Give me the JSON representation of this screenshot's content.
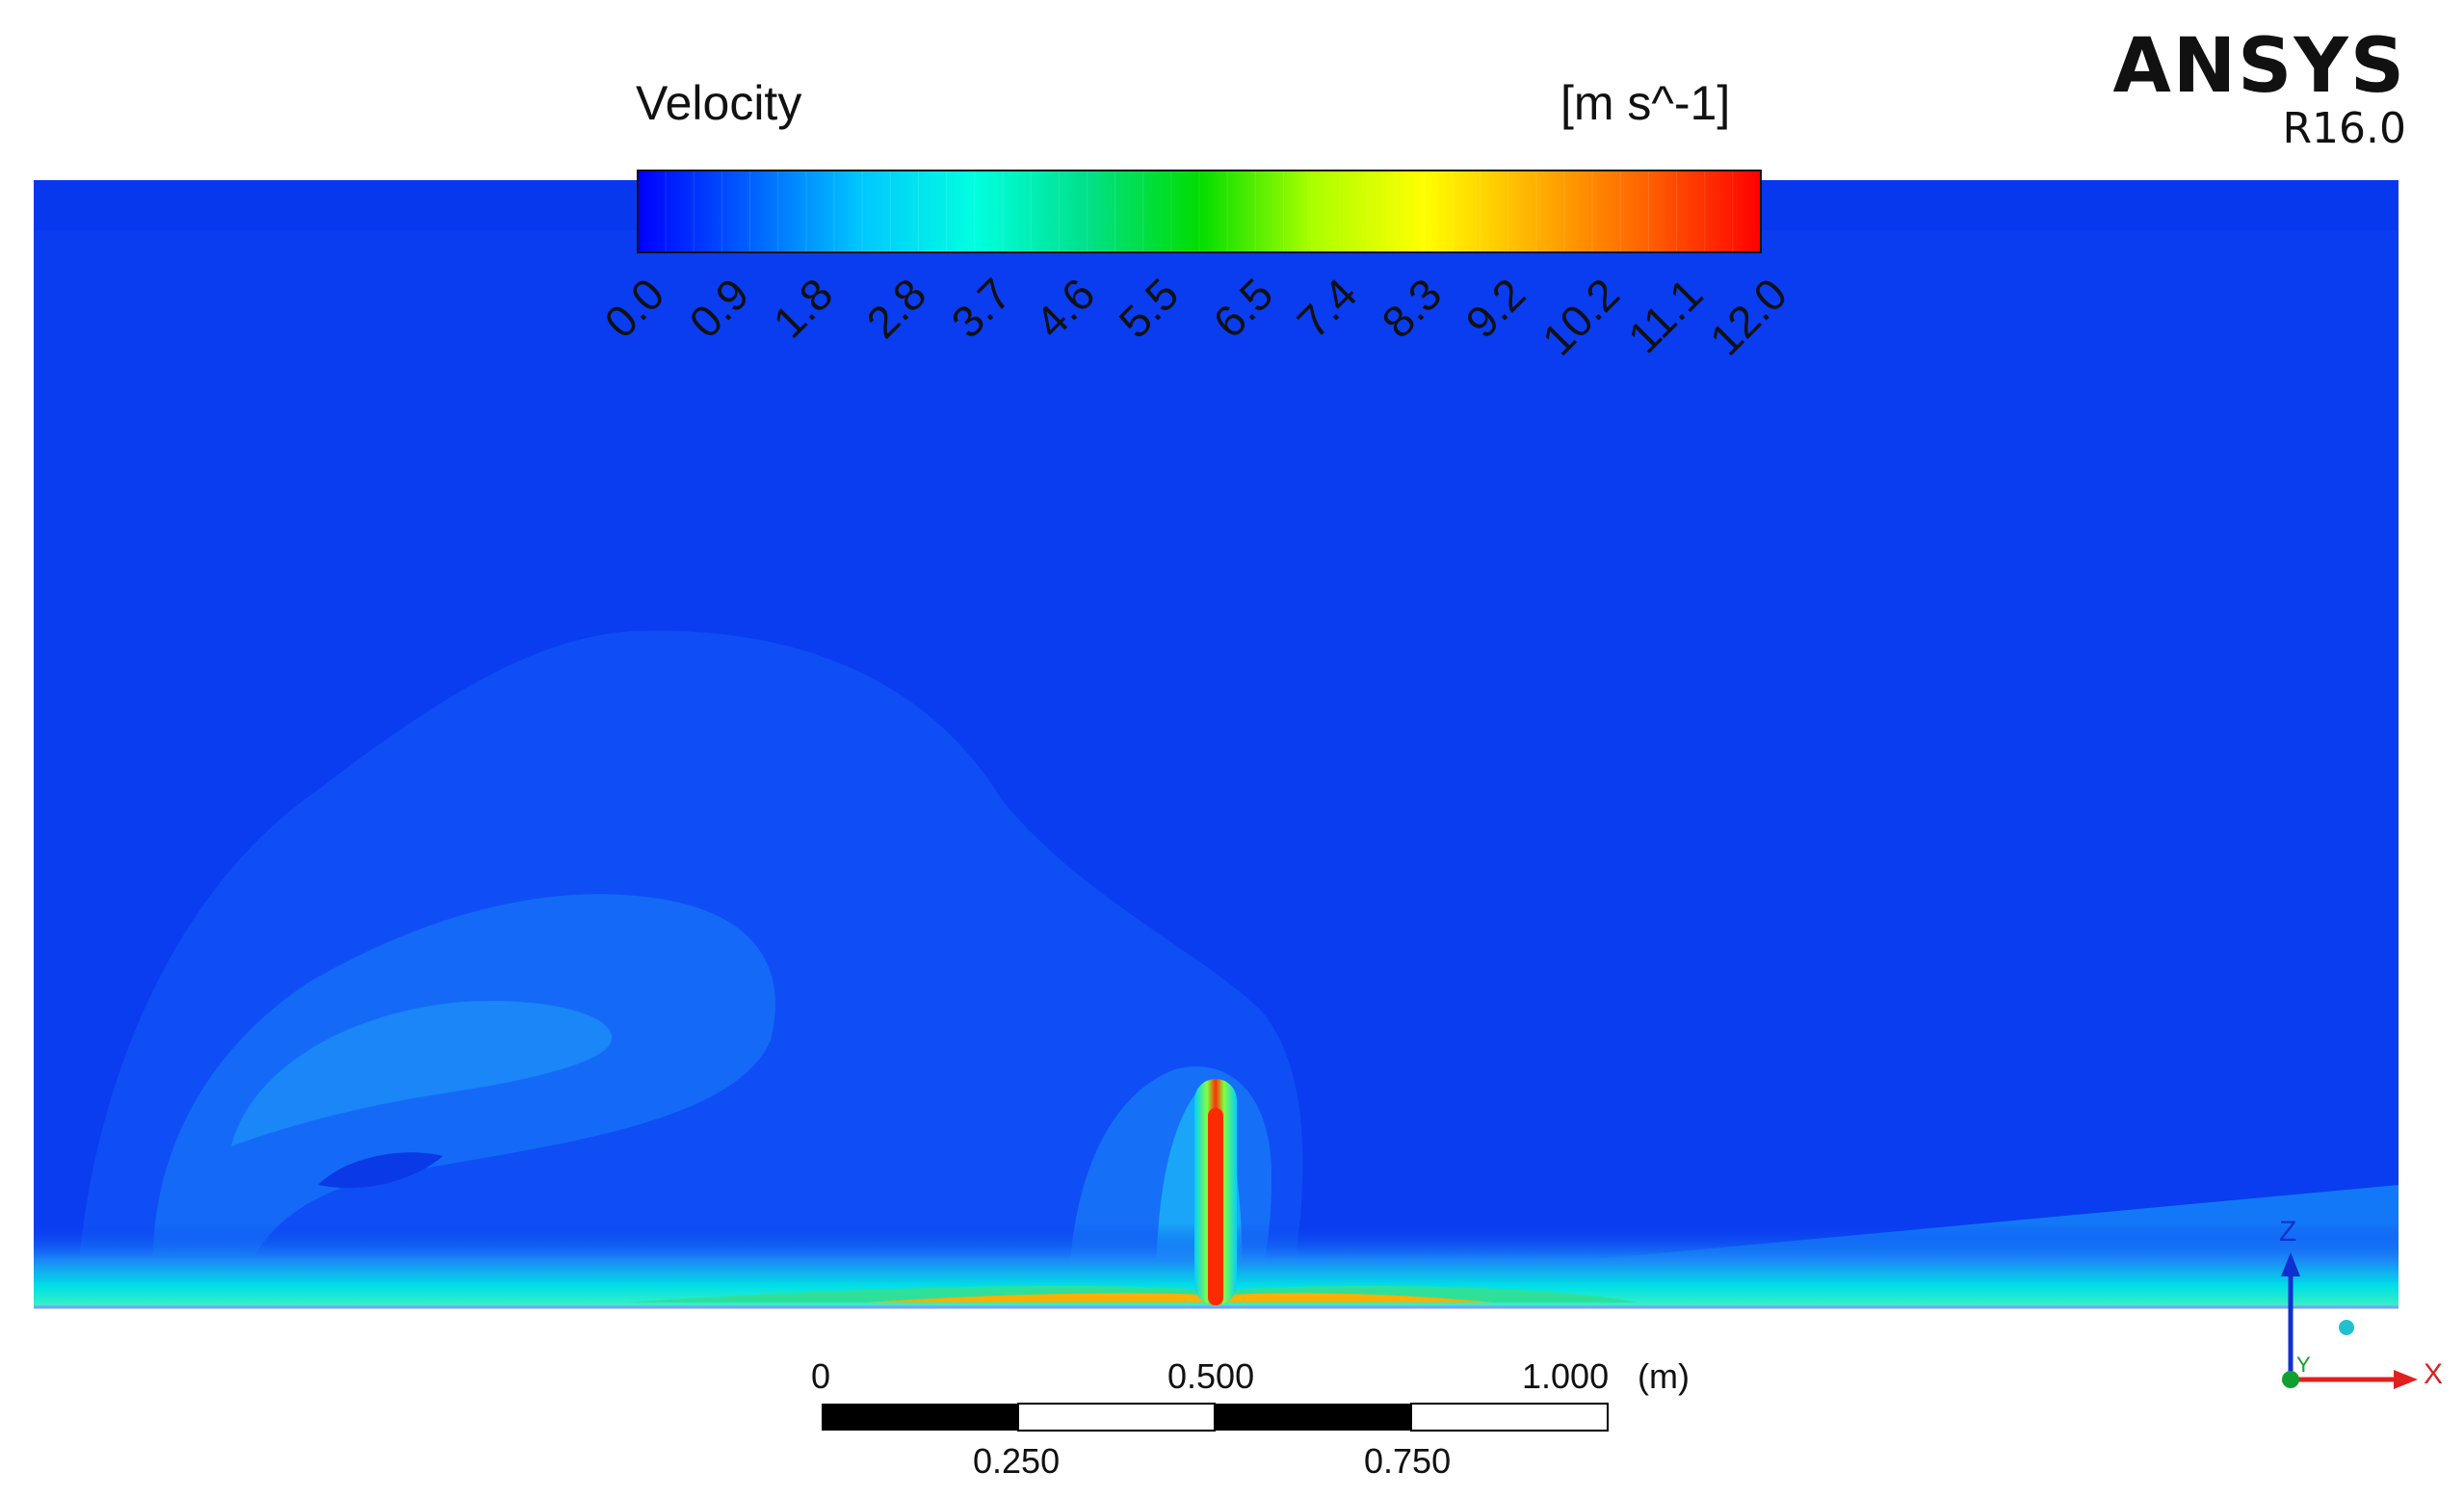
{
  "legend": {
    "title": "Velocity",
    "units": "[m s^-1]",
    "ticks": [
      "0.0",
      "0.9",
      "1.8",
      "2.8",
      "3.7",
      "4.6",
      "5.5",
      "6.5",
      "7.4",
      "8.3",
      "9.2",
      "10.2",
      "11.1",
      "12.0"
    ],
    "range": [
      0.0,
      12.0
    ],
    "colormap": [
      "#0000ff",
      "#0060ff",
      "#00c8ff",
      "#00ffe0",
      "#00e08a",
      "#00dd00",
      "#aaff00",
      "#ffff00",
      "#ffb000",
      "#ff6000",
      "#ff0000"
    ]
  },
  "brand": {
    "name": "ANSYS",
    "version": "R16.0"
  },
  "scale_bar": {
    "top_labels": [
      "0",
      "0.500",
      "1.000",
      "(m)"
    ],
    "bottom_labels": [
      "0.250",
      "0.750"
    ]
  },
  "axes": {
    "x": "X",
    "z": "Z",
    "y": "Y"
  },
  "colors": {
    "background_field": "#0a3cf0",
    "outer_wake": "#0f4ef5",
    "inner_wake": "#1a7cf8",
    "jet": "#ff2a00"
  }
}
